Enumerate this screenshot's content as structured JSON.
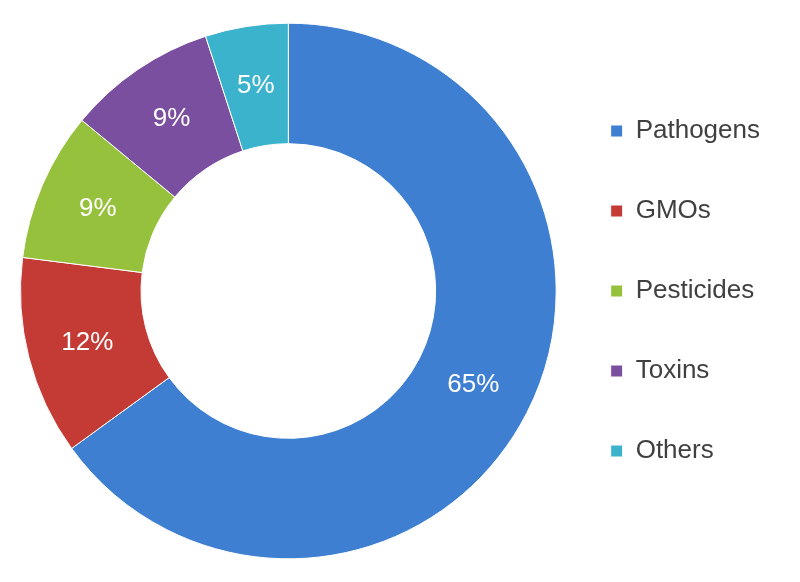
{
  "chart_data": {
    "type": "doughnut",
    "categories": [
      "Pathogens",
      "GMOs",
      "Pesticides",
      "Toxins",
      "Others"
    ],
    "values": [
      65,
      12,
      9,
      9,
      5
    ],
    "value_labels": [
      "65%",
      "12%",
      "9%",
      "9%",
      "5%"
    ],
    "colors": [
      "#3f7fd2",
      "#c43a35",
      "#96c13c",
      "#7a4f9f",
      "#3bb3cc"
    ],
    "legend": "right",
    "data_labels": true
  }
}
